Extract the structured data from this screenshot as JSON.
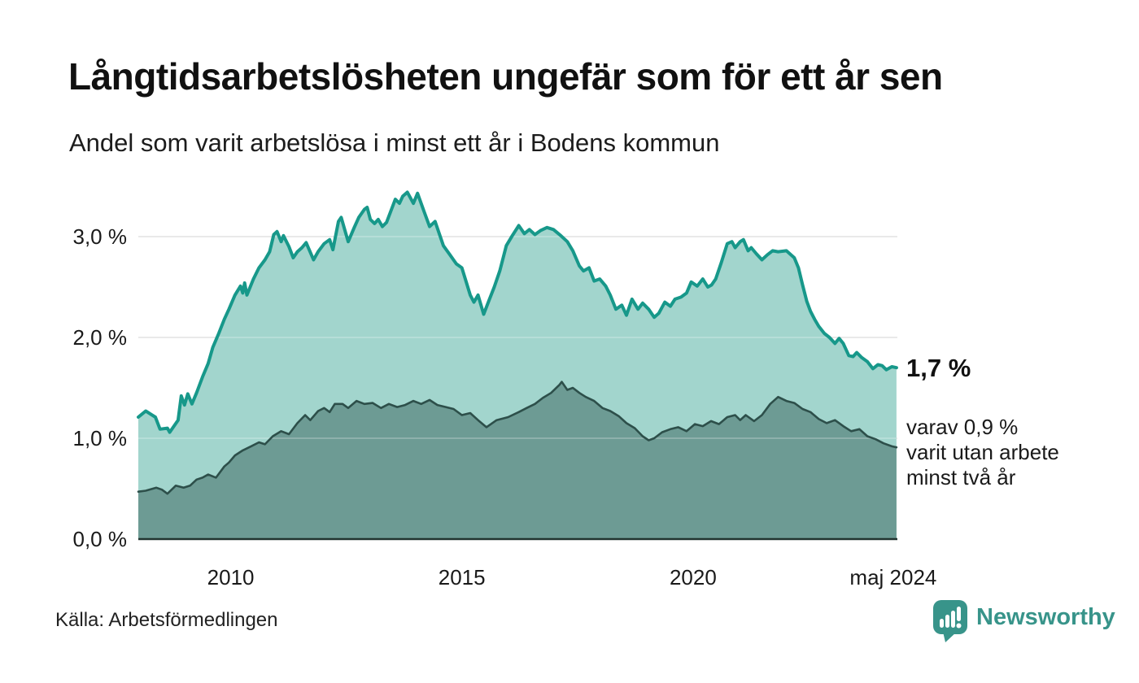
{
  "colors": {
    "background": "#ffffff",
    "text": "#1a1a1a",
    "grid": "#d9d9d9",
    "axis": "#21332f",
    "accent_teal": "#17988a",
    "brand_teal": "#38948a"
  },
  "annotations": {
    "latest_total": "1,7 %",
    "secondary": [
      "varav 0,9 %",
      "varit utan arbete",
      "minst två år"
    ]
  },
  "footer": {
    "source": "Källa: Arbetsförmedlingen",
    "brand": "Newsworthy"
  },
  "icons": {
    "newsworthy_logo": "speech-bubble-bar-chart-exclamation"
  },
  "chart_data": {
    "type": "area",
    "title": "Långtidsarbetslösheten ungefär som för ett år sen",
    "subtitle": "Andel som varit arbetslösa i minst ett år i Bodens kommun",
    "unit": "%",
    "grid": true,
    "legend_position": "none",
    "xlim": [
      2008.0,
      2024.42
    ],
    "ylim": [
      0,
      3.6
    ],
    "x_ticks": [
      {
        "label": "2010",
        "year": 2010
      },
      {
        "label": "2015",
        "year": 2015
      },
      {
        "label": "2020",
        "year": 2020
      },
      {
        "label": "maj 2024",
        "year": 2024.33
      }
    ],
    "y_ticks": [
      {
        "label": "0,0 %",
        "value": 0
      },
      {
        "label": "1,0 %",
        "value": 1
      },
      {
        "label": "2,0 %",
        "value": 2
      },
      {
        "label": "3,0 %",
        "value": 3
      }
    ],
    "series": [
      {
        "name": "Arbetslösa minst ett år",
        "latest_label": "1,7 %",
        "line_color": "#17988a",
        "fill_color": "#a2d5cd",
        "points": [
          [
            2008.0,
            1.21
          ],
          [
            2008.16,
            1.27
          ],
          [
            2008.37,
            1.21
          ],
          [
            2008.47,
            1.09
          ],
          [
            2008.63,
            1.1
          ],
          [
            2008.68,
            1.06
          ],
          [
            2008.86,
            1.18
          ],
          [
            2008.93,
            1.42
          ],
          [
            2009.0,
            1.33
          ],
          [
            2009.07,
            1.44
          ],
          [
            2009.16,
            1.34
          ],
          [
            2009.26,
            1.45
          ],
          [
            2009.39,
            1.61
          ],
          [
            2009.51,
            1.74
          ],
          [
            2009.61,
            1.9
          ],
          [
            2009.74,
            2.04
          ],
          [
            2009.86,
            2.18
          ],
          [
            2009.96,
            2.28
          ],
          [
            2010.09,
            2.42
          ],
          [
            2010.21,
            2.51
          ],
          [
            2010.26,
            2.44
          ],
          [
            2010.3,
            2.54
          ],
          [
            2010.35,
            2.42
          ],
          [
            2010.49,
            2.58
          ],
          [
            2010.61,
            2.69
          ],
          [
            2010.74,
            2.77
          ],
          [
            2010.84,
            2.85
          ],
          [
            2010.93,
            3.02
          ],
          [
            2011.0,
            3.05
          ],
          [
            2011.09,
            2.95
          ],
          [
            2011.14,
            3.01
          ],
          [
            2011.26,
            2.9
          ],
          [
            2011.35,
            2.79
          ],
          [
            2011.44,
            2.85
          ],
          [
            2011.54,
            2.89
          ],
          [
            2011.63,
            2.94
          ],
          [
            2011.79,
            2.77
          ],
          [
            2011.89,
            2.85
          ],
          [
            2012.02,
            2.93
          ],
          [
            2012.14,
            2.97
          ],
          [
            2012.21,
            2.87
          ],
          [
            2012.33,
            3.15
          ],
          [
            2012.39,
            3.19
          ],
          [
            2012.49,
            3.03
          ],
          [
            2012.54,
            2.95
          ],
          [
            2012.67,
            3.09
          ],
          [
            2012.77,
            3.19
          ],
          [
            2012.89,
            3.27
          ],
          [
            2012.95,
            3.29
          ],
          [
            2013.02,
            3.17
          ],
          [
            2013.11,
            3.13
          ],
          [
            2013.19,
            3.17
          ],
          [
            2013.28,
            3.1
          ],
          [
            2013.37,
            3.14
          ],
          [
            2013.56,
            3.37
          ],
          [
            2013.65,
            3.33
          ],
          [
            2013.72,
            3.4
          ],
          [
            2013.82,
            3.44
          ],
          [
            2013.95,
            3.33
          ],
          [
            2014.04,
            3.43
          ],
          [
            2014.18,
            3.25
          ],
          [
            2014.3,
            3.1
          ],
          [
            2014.42,
            3.15
          ],
          [
            2014.6,
            2.91
          ],
          [
            2014.74,
            2.82
          ],
          [
            2014.88,
            2.73
          ],
          [
            2015.0,
            2.69
          ],
          [
            2015.18,
            2.42
          ],
          [
            2015.26,
            2.35
          ],
          [
            2015.35,
            2.42
          ],
          [
            2015.47,
            2.23
          ],
          [
            2015.58,
            2.36
          ],
          [
            2015.7,
            2.5
          ],
          [
            2015.82,
            2.66
          ],
          [
            2015.96,
            2.91
          ],
          [
            2016.09,
            3.01
          ],
          [
            2016.23,
            3.11
          ],
          [
            2016.35,
            3.03
          ],
          [
            2016.46,
            3.07
          ],
          [
            2016.58,
            3.02
          ],
          [
            2016.7,
            3.06
          ],
          [
            2016.84,
            3.09
          ],
          [
            2016.98,
            3.07
          ],
          [
            2017.14,
            3.01
          ],
          [
            2017.28,
            2.95
          ],
          [
            2017.4,
            2.86
          ],
          [
            2017.54,
            2.71
          ],
          [
            2017.63,
            2.66
          ],
          [
            2017.75,
            2.69
          ],
          [
            2017.86,
            2.56
          ],
          [
            2017.98,
            2.58
          ],
          [
            2018.11,
            2.51
          ],
          [
            2018.21,
            2.42
          ],
          [
            2018.33,
            2.28
          ],
          [
            2018.46,
            2.32
          ],
          [
            2018.56,
            2.22
          ],
          [
            2018.68,
            2.38
          ],
          [
            2018.81,
            2.28
          ],
          [
            2018.91,
            2.34
          ],
          [
            2019.04,
            2.28
          ],
          [
            2019.16,
            2.2
          ],
          [
            2019.26,
            2.24
          ],
          [
            2019.39,
            2.35
          ],
          [
            2019.51,
            2.31
          ],
          [
            2019.61,
            2.38
          ],
          [
            2019.74,
            2.4
          ],
          [
            2019.86,
            2.44
          ],
          [
            2019.96,
            2.55
          ],
          [
            2020.09,
            2.51
          ],
          [
            2020.21,
            2.58
          ],
          [
            2020.32,
            2.5
          ],
          [
            2020.4,
            2.52
          ],
          [
            2020.49,
            2.58
          ],
          [
            2020.61,
            2.74
          ],
          [
            2020.74,
            2.93
          ],
          [
            2020.84,
            2.95
          ],
          [
            2020.91,
            2.89
          ],
          [
            2021.02,
            2.95
          ],
          [
            2021.09,
            2.97
          ],
          [
            2021.19,
            2.86
          ],
          [
            2021.26,
            2.89
          ],
          [
            2021.37,
            2.83
          ],
          [
            2021.49,
            2.77
          ],
          [
            2021.61,
            2.82
          ],
          [
            2021.72,
            2.86
          ],
          [
            2021.84,
            2.85
          ],
          [
            2022.02,
            2.86
          ],
          [
            2022.19,
            2.79
          ],
          [
            2022.28,
            2.69
          ],
          [
            2022.37,
            2.52
          ],
          [
            2022.46,
            2.36
          ],
          [
            2022.54,
            2.26
          ],
          [
            2022.63,
            2.18
          ],
          [
            2022.72,
            2.11
          ],
          [
            2022.84,
            2.04
          ],
          [
            2022.95,
            2.0
          ],
          [
            2023.07,
            1.94
          ],
          [
            2023.16,
            1.99
          ],
          [
            2023.25,
            1.94
          ],
          [
            2023.37,
            1.82
          ],
          [
            2023.46,
            1.81
          ],
          [
            2023.54,
            1.85
          ],
          [
            2023.65,
            1.8
          ],
          [
            2023.77,
            1.76
          ],
          [
            2023.89,
            1.69
          ],
          [
            2024.0,
            1.73
          ],
          [
            2024.09,
            1.72
          ],
          [
            2024.18,
            1.68
          ],
          [
            2024.3,
            1.71
          ],
          [
            2024.4,
            1.7
          ]
        ]
      },
      {
        "name": "Arbetslösa minst två år",
        "latest_label": "0,9 %",
        "line_color": "#2d4f4a",
        "fill_color": "#6d9b94",
        "points": [
          [
            2008.0,
            0.47
          ],
          [
            2008.16,
            0.48
          ],
          [
            2008.39,
            0.51
          ],
          [
            2008.51,
            0.49
          ],
          [
            2008.63,
            0.45
          ],
          [
            2008.81,
            0.53
          ],
          [
            2008.98,
            0.51
          ],
          [
            2009.12,
            0.53
          ],
          [
            2009.26,
            0.59
          ],
          [
            2009.39,
            0.61
          ],
          [
            2009.51,
            0.64
          ],
          [
            2009.68,
            0.61
          ],
          [
            2009.86,
            0.72
          ],
          [
            2009.96,
            0.76
          ],
          [
            2010.09,
            0.83
          ],
          [
            2010.26,
            0.88
          ],
          [
            2010.44,
            0.92
          ],
          [
            2010.61,
            0.96
          ],
          [
            2010.74,
            0.94
          ],
          [
            2010.91,
            1.02
          ],
          [
            2011.09,
            1.07
          ],
          [
            2011.26,
            1.04
          ],
          [
            2011.44,
            1.15
          ],
          [
            2011.61,
            1.23
          ],
          [
            2011.72,
            1.18
          ],
          [
            2011.89,
            1.27
          ],
          [
            2012.02,
            1.3
          ],
          [
            2012.14,
            1.26
          ],
          [
            2012.25,
            1.34
          ],
          [
            2012.42,
            1.34
          ],
          [
            2012.54,
            1.3
          ],
          [
            2012.72,
            1.37
          ],
          [
            2012.89,
            1.34
          ],
          [
            2013.07,
            1.35
          ],
          [
            2013.25,
            1.3
          ],
          [
            2013.42,
            1.34
          ],
          [
            2013.6,
            1.31
          ],
          [
            2013.77,
            1.33
          ],
          [
            2013.95,
            1.37
          ],
          [
            2014.12,
            1.34
          ],
          [
            2014.3,
            1.38
          ],
          [
            2014.47,
            1.33
          ],
          [
            2014.65,
            1.31
          ],
          [
            2014.82,
            1.29
          ],
          [
            2015.0,
            1.23
          ],
          [
            2015.18,
            1.25
          ],
          [
            2015.35,
            1.18
          ],
          [
            2015.53,
            1.11
          ],
          [
            2015.75,
            1.18
          ],
          [
            2016.0,
            1.21
          ],
          [
            2016.23,
            1.26
          ],
          [
            2016.4,
            1.3
          ],
          [
            2016.58,
            1.34
          ],
          [
            2016.75,
            1.4
          ],
          [
            2016.93,
            1.45
          ],
          [
            2017.11,
            1.53
          ],
          [
            2017.16,
            1.56
          ],
          [
            2017.28,
            1.48
          ],
          [
            2017.4,
            1.5
          ],
          [
            2017.54,
            1.45
          ],
          [
            2017.68,
            1.41
          ],
          [
            2017.86,
            1.37
          ],
          [
            2018.04,
            1.3
          ],
          [
            2018.21,
            1.27
          ],
          [
            2018.39,
            1.22
          ],
          [
            2018.56,
            1.15
          ],
          [
            2018.74,
            1.1
          ],
          [
            2018.91,
            1.02
          ],
          [
            2019.04,
            0.98
          ],
          [
            2019.16,
            1.0
          ],
          [
            2019.33,
            1.06
          ],
          [
            2019.51,
            1.09
          ],
          [
            2019.68,
            1.11
          ],
          [
            2019.86,
            1.07
          ],
          [
            2020.04,
            1.14
          ],
          [
            2020.21,
            1.12
          ],
          [
            2020.39,
            1.17
          ],
          [
            2020.56,
            1.14
          ],
          [
            2020.74,
            1.21
          ],
          [
            2020.91,
            1.23
          ],
          [
            2021.02,
            1.18
          ],
          [
            2021.14,
            1.23
          ],
          [
            2021.32,
            1.17
          ],
          [
            2021.49,
            1.23
          ],
          [
            2021.67,
            1.34
          ],
          [
            2021.84,
            1.41
          ],
          [
            2022.02,
            1.37
          ],
          [
            2022.19,
            1.35
          ],
          [
            2022.37,
            1.29
          ],
          [
            2022.54,
            1.26
          ],
          [
            2022.72,
            1.19
          ],
          [
            2022.89,
            1.15
          ],
          [
            2023.07,
            1.18
          ],
          [
            2023.25,
            1.12
          ],
          [
            2023.42,
            1.07
          ],
          [
            2023.6,
            1.09
          ],
          [
            2023.77,
            1.02
          ],
          [
            2023.95,
            0.99
          ],
          [
            2024.12,
            0.95
          ],
          [
            2024.3,
            0.92
          ],
          [
            2024.4,
            0.91
          ]
        ]
      }
    ]
  }
}
